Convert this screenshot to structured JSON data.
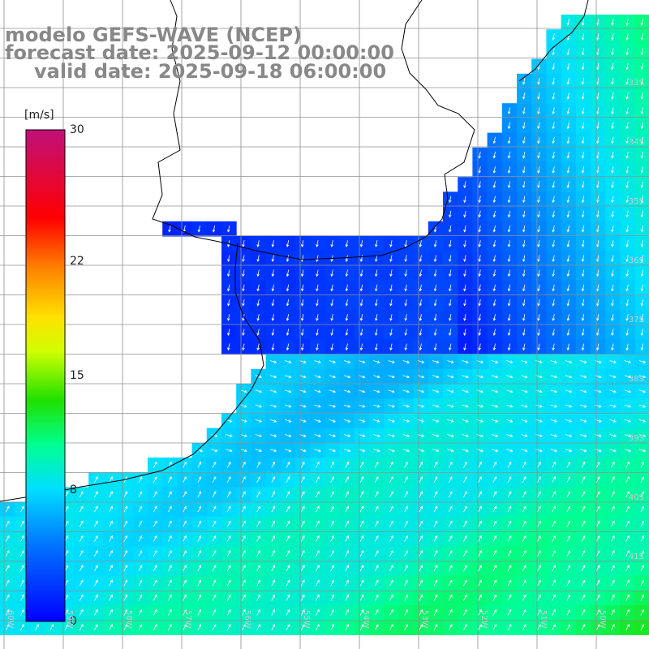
{
  "title": {
    "line1": "modelo GEFS-WAVE (NCEP)",
    "line2": "forecast date: 2025-09-12 00:00:00",
    "line3": "valid date: 2025-09-18 06:00:00"
  },
  "colorbar": {
    "unit": "[m/s]",
    "ticks": [
      {
        "value": 30,
        "label": "30"
      },
      {
        "value": 22,
        "label": "22"
      },
      {
        "value": 15,
        "label": "15"
      },
      {
        "value": 8,
        "label": "8"
      },
      {
        "value": 0,
        "label": "0"
      }
    ],
    "range": [
      0,
      30
    ]
  },
  "axes": {
    "lat_labels": [
      "33S",
      "34S",
      "35S",
      "36S",
      "37S",
      "38S",
      "39S",
      "40S",
      "41S"
    ],
    "lon_labels": [
      "60W",
      "59W",
      "58W",
      "57W",
      "56W",
      "55W",
      "54W",
      "53W",
      "52W",
      "51W",
      "50W"
    ]
  },
  "colors": {
    "land": "#ffffff",
    "coast": "#000000",
    "grid": "#909090",
    "arrows": "#ffffff"
  }
}
